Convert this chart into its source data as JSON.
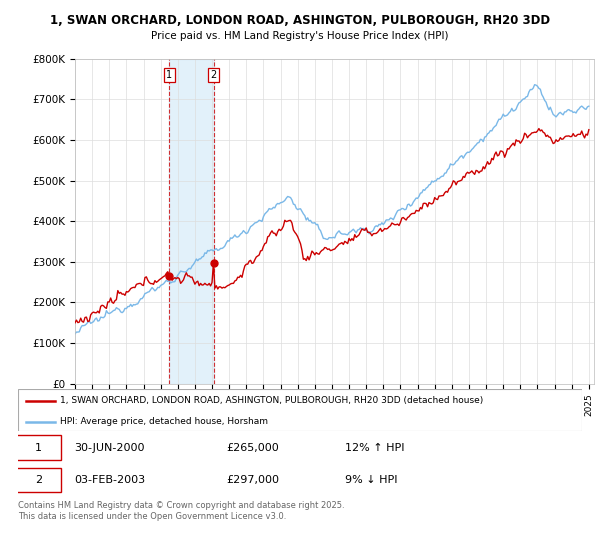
{
  "title_line1": "1, SWAN ORCHARD, LONDON ROAD, ASHINGTON, PULBOROUGH, RH20 3DD",
  "title_line2": "Price paid vs. HM Land Registry's House Price Index (HPI)",
  "hpi_color": "#7ab8e8",
  "hpi_fill_color": "#d0e8f8",
  "price_color": "#cc0000",
  "marker_color": "#cc0000",
  "sale1_date": 2000.5,
  "sale1_price": 265000,
  "sale2_date": 2003.09,
  "sale2_price": 297000,
  "legend_line1": "1, SWAN ORCHARD, LONDON ROAD, ASHINGTON, PULBOROUGH, RH20 3DD (detached house)",
  "legend_line2": "HPI: Average price, detached house, Horsham",
  "background_color": "#ffffff",
  "grid_color": "#dddddd",
  "footnote": "Contains HM Land Registry data © Crown copyright and database right 2025.\nThis data is licensed under the Open Government Licence v3.0."
}
